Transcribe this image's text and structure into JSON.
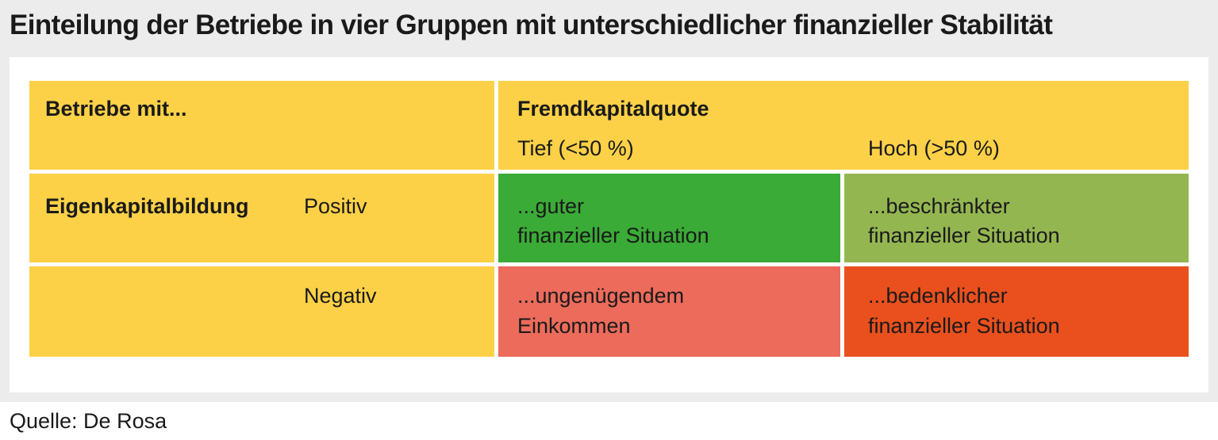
{
  "title": "Einteilung der Betriebe in vier Gruppen mit unterschiedlicher finanzieller Stabilität",
  "table": {
    "corner_label": "Betriebe mit...",
    "col_group_label": "Fremdkapitalquote",
    "col_headers": [
      "Tief (<50 %)",
      "Hoch (>50 %)"
    ],
    "row_group_label": "Eigenkapitalbildung",
    "row_headers": [
      "Positiv",
      "Negativ"
    ],
    "cells": [
      [
        {
          "line1": "...guter",
          "line2": "finanzieller Situation",
          "color": "#3aab36"
        },
        {
          "line1": "...beschränkter",
          "line2": "finanzieller Situation",
          "color": "#94b651"
        }
      ],
      [
        {
          "line1": "...ungenügendem",
          "line2": "Einkommen",
          "color": "#ec6b5b"
        },
        {
          "line1": "...bedenklicher",
          "line2": "finanzieller Situation",
          "color": "#e9501e"
        }
      ]
    ],
    "header_color": "#fdd147"
  },
  "source": "Quelle: De Rosa"
}
